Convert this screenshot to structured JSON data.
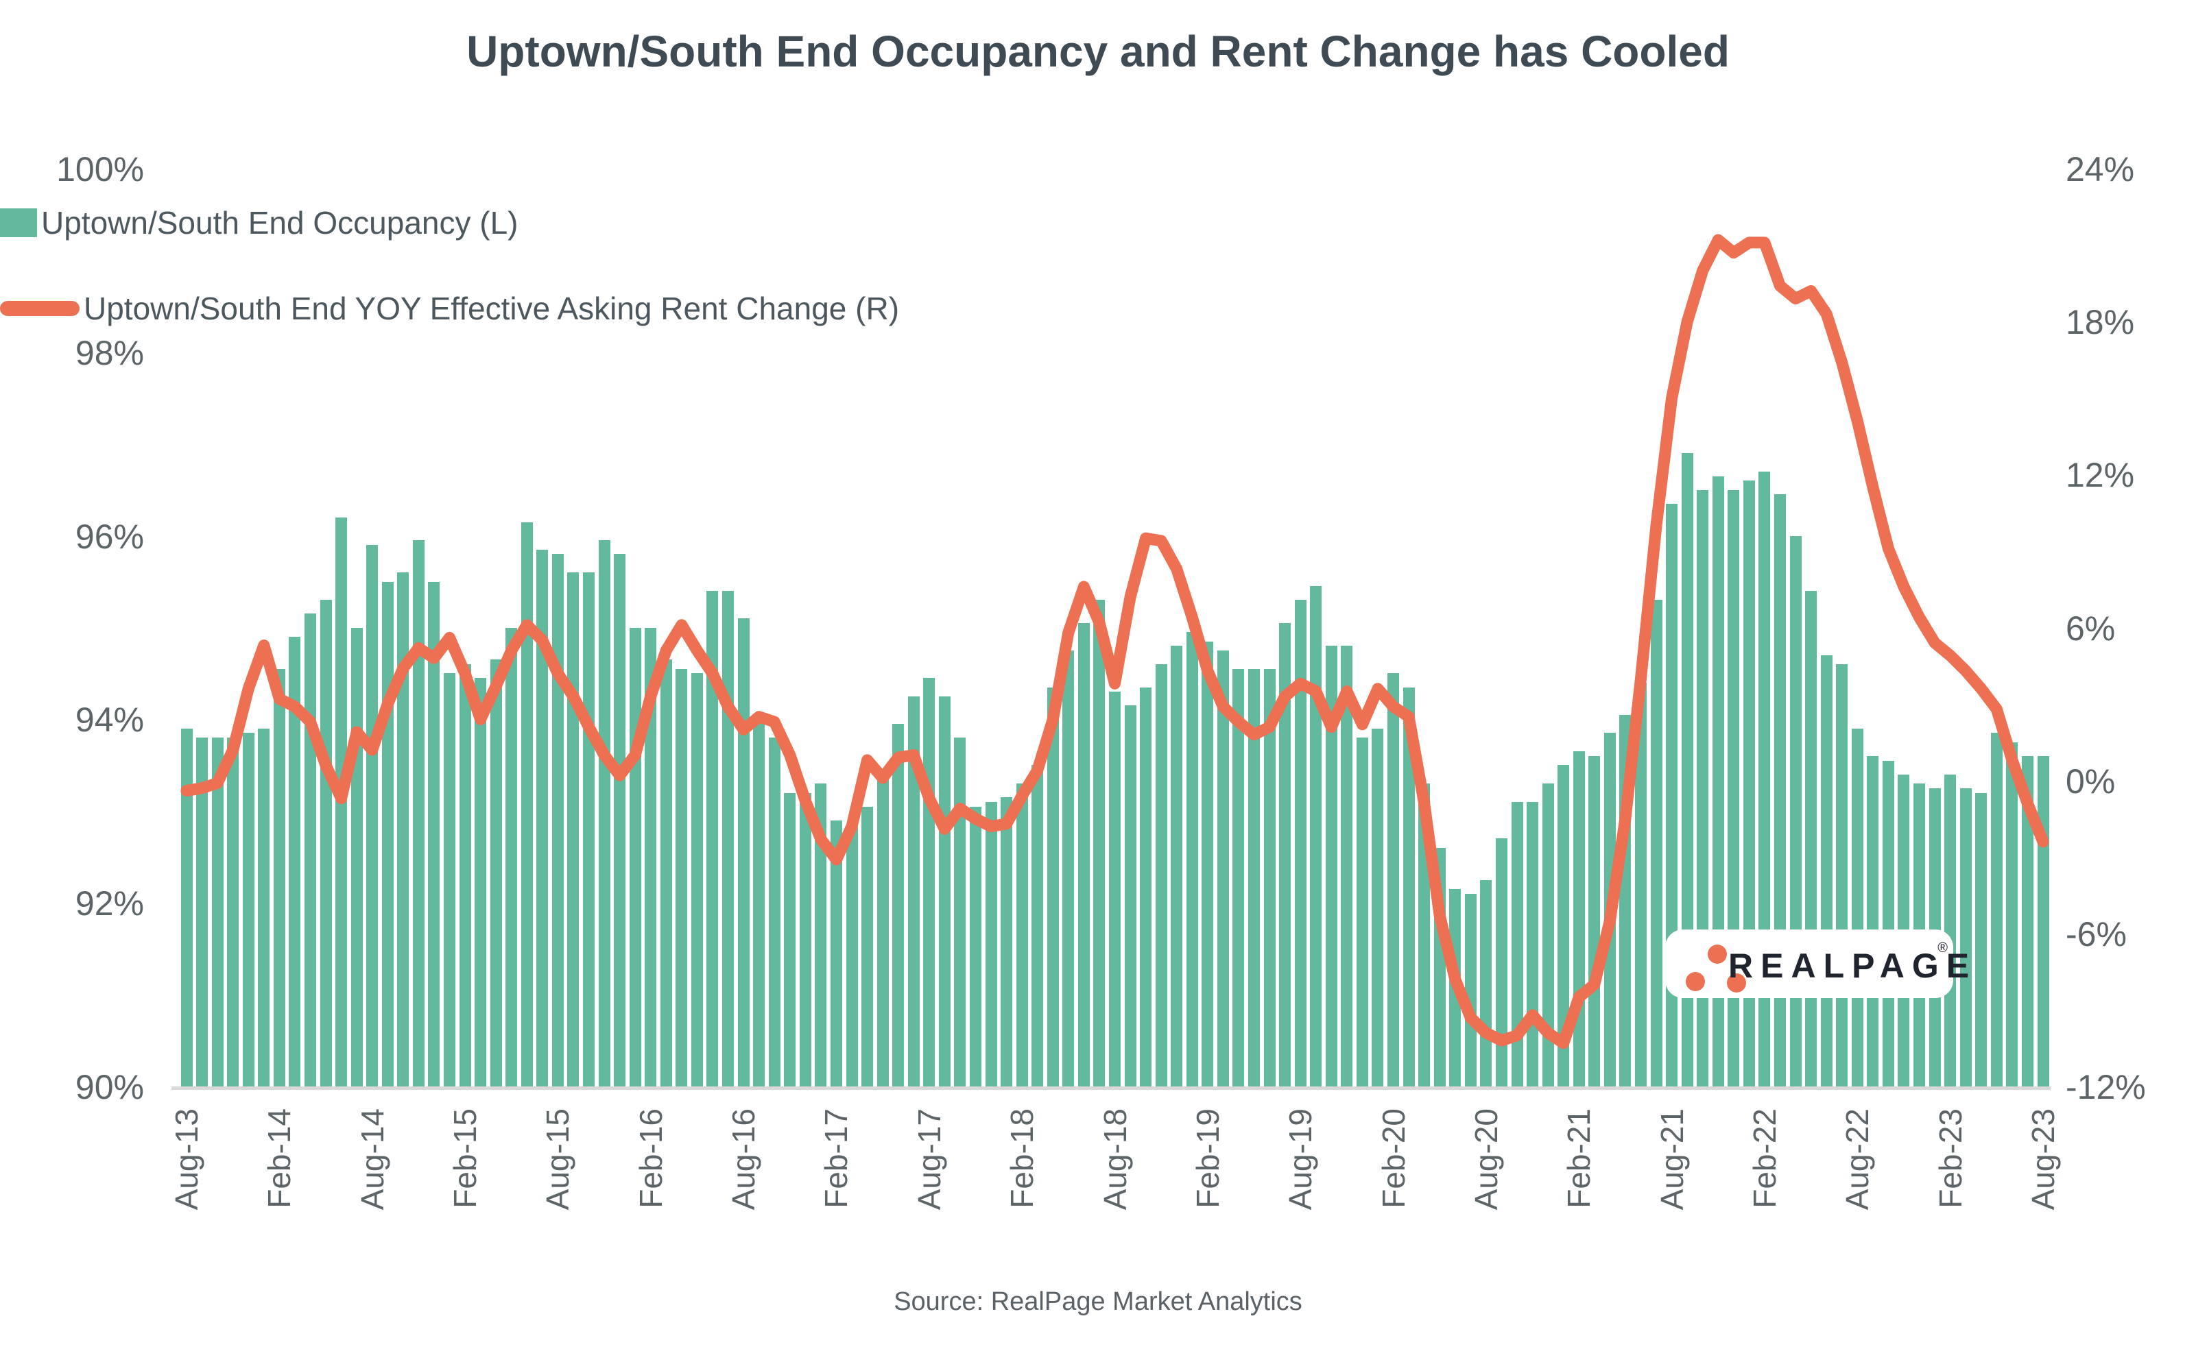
{
  "title": "Uptown/South End Occupancy and Rent Change has Cooled",
  "source": "Source: RealPage Market Analytics",
  "logo": {
    "text": "REALPAGE",
    "reg": "®"
  },
  "colors": {
    "bar": "#63b99e",
    "line": "#ed7052",
    "title_text": "#3e4b54",
    "axis_text": "#5c6468",
    "axis_line": "#d9d9d9",
    "logo_text": "#20242e",
    "background": "#ffffff"
  },
  "chart_data": {
    "type": "bar+line combo, dual axis",
    "frequency": "monthly",
    "start_month": "Aug-13",
    "end_month": "Aug-23",
    "x_axis": {
      "tick_labels": [
        "Aug-13",
        "Feb-14",
        "Aug-14",
        "Feb-15",
        "Aug-15",
        "Feb-16",
        "Aug-16",
        "Feb-17",
        "Aug-17",
        "Feb-18",
        "Aug-18",
        "Feb-19",
        "Aug-19",
        "Feb-20",
        "Aug-20",
        "Feb-21",
        "Aug-21",
        "Feb-22",
        "Aug-22",
        "Feb-23",
        "Aug-23"
      ],
      "tick_month_indices": [
        0,
        6,
        12,
        18,
        24,
        30,
        36,
        42,
        48,
        54,
        60,
        66,
        72,
        78,
        84,
        90,
        96,
        102,
        108,
        114,
        120
      ]
    },
    "left_axis": {
      "title": "",
      "ticks": [
        "100%",
        "98%",
        "96%",
        "94%",
        "92%",
        "90%"
      ],
      "tick_values": [
        100,
        98,
        96,
        94,
        92,
        90
      ],
      "min": 90,
      "max": 100
    },
    "right_axis": {
      "title": "",
      "ticks": [
        "24%",
        "18%",
        "12%",
        "6%",
        "0%",
        "-6%",
        "-12%"
      ],
      "tick_values": [
        24,
        18,
        12,
        6,
        0,
        -6,
        -12
      ],
      "min": -12,
      "max": 24
    },
    "series": [
      {
        "name": "Uptown/South End Occupancy (L)",
        "type": "bar",
        "axis": "left",
        "color": "#63b99e",
        "values": [
          93.9,
          93.8,
          93.8,
          93.8,
          93.85,
          93.9,
          94.55,
          94.9,
          95.15,
          95.3,
          96.2,
          95.0,
          95.9,
          95.5,
          95.6,
          95.95,
          95.5,
          94.5,
          94.6,
          94.45,
          94.65,
          95.0,
          96.15,
          95.85,
          95.8,
          95.6,
          95.6,
          95.95,
          95.8,
          95.0,
          95.0,
          94.65,
          94.55,
          94.5,
          95.4,
          95.4,
          95.1,
          94.05,
          93.8,
          93.2,
          93.2,
          93.3,
          92.9,
          92.85,
          93.05,
          93.4,
          93.95,
          94.25,
          94.45,
          94.25,
          93.8,
          93.05,
          93.1,
          93.15,
          93.3,
          93.5,
          94.35,
          94.75,
          95.05,
          95.3,
          94.3,
          94.15,
          94.35,
          94.6,
          94.8,
          94.95,
          94.85,
          94.75,
          94.55,
          94.55,
          94.55,
          95.05,
          95.3,
          95.45,
          94.8,
          94.8,
          93.8,
          93.9,
          94.5,
          94.35,
          93.3,
          92.6,
          92.15,
          92.1,
          92.25,
          92.7,
          93.1,
          93.1,
          93.3,
          93.5,
          93.65,
          93.6,
          93.85,
          94.05,
          94.4,
          95.3,
          96.35,
          96.9,
          96.5,
          96.65,
          96.5,
          96.6,
          96.7,
          96.45,
          96.0,
          95.4,
          94.7,
          94.6,
          93.9,
          93.6,
          93.55,
          93.4,
          93.3,
          93.25,
          93.4,
          93.25,
          93.2,
          93.85,
          93.75,
          93.6,
          93.6
        ]
      },
      {
        "name": "Uptown/South End YOY Effective Asking Rent Change (R)",
        "type": "line",
        "axis": "right",
        "color": "#ed7052",
        "values": [
          -0.4,
          -0.3,
          -0.1,
          1.2,
          3.6,
          5.3,
          3.2,
          2.9,
          2.3,
          0.6,
          -0.7,
          1.9,
          1.2,
          3.0,
          4.4,
          5.2,
          4.8,
          5.6,
          4.2,
          2.4,
          3.7,
          5.1,
          6.1,
          5.5,
          4.2,
          3.3,
          2.1,
          1.0,
          0.2,
          1.0,
          3.3,
          5.1,
          6.1,
          5.1,
          4.2,
          2.9,
          2.0,
          2.5,
          2.3,
          1.0,
          -0.8,
          -2.3,
          -3.1,
          -1.8,
          0.8,
          0.1,
          0.9,
          1.0,
          -0.7,
          -1.9,
          -1.1,
          -1.5,
          -1.8,
          -1.7,
          -0.6,
          0.4,
          2.4,
          5.8,
          7.6,
          6.2,
          3.8,
          7.2,
          9.5,
          9.4,
          8.3,
          6.4,
          4.3,
          2.9,
          2.3,
          1.8,
          2.1,
          3.3,
          3.8,
          3.5,
          2.1,
          3.5,
          2.2,
          3.6,
          2.9,
          2.5,
          -0.9,
          -5.3,
          -7.8,
          -9.3,
          -9.9,
          -10.2,
          -10.0,
          -9.2,
          -9.9,
          -10.3,
          -8.5,
          -8.0,
          -5.5,
          -1.5,
          4.0,
          10.0,
          15.0,
          18.0,
          20.0,
          21.2,
          20.7,
          21.1,
          21.1,
          19.4,
          18.9,
          19.2,
          18.3,
          16.4,
          14.1,
          11.5,
          9.1,
          7.6,
          6.4,
          5.4,
          4.9,
          4.3,
          3.6,
          2.8,
          0.8,
          -0.9,
          -2.4
        ]
      }
    ]
  }
}
